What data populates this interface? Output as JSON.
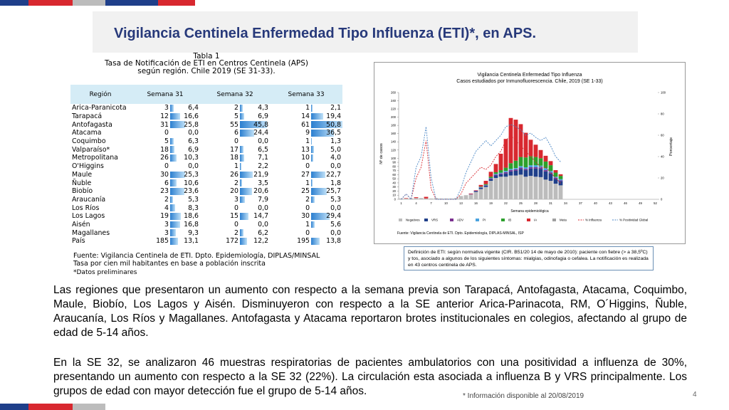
{
  "slide": {
    "title": "Vigilancia Centinela Enfermedad Tipo Influenza (ETI)*, en APS.",
    "page_number": "4",
    "note": "* Información disponible al 20/08/2019",
    "colors": {
      "blue": "#1f3f8a",
      "red": "#d8282f",
      "grey": "#bcbcbc",
      "title": "#27397a"
    }
  },
  "table": {
    "caption_line1": "Tabla 1",
    "caption_line2": "Tasa de Notificación de ETI en Centros Centinela (APS)",
    "caption_line3": "según región. Chile 2019 (SE 31-33).",
    "headers": {
      "region": "Región",
      "w31": "Semana 31",
      "w32": "Semana 32",
      "w33": "Semana 33"
    },
    "rows": [
      {
        "region": "Arica-Paranicota",
        "n31": "3",
        "r31": "6,4",
        "n32": "2",
        "r32": "4,3",
        "n33": "1",
        "r33": "2,1"
      },
      {
        "region": "Tarapacá",
        "n31": "12",
        "r31": "16,6",
        "n32": "5",
        "r32": "6,9",
        "n33": "14",
        "r33": "19,4"
      },
      {
        "region": "Antofagasta",
        "n31": "31",
        "r31": "25,8",
        "n32": "55",
        "r32": "45,8",
        "n33": "61",
        "r33": "50,8"
      },
      {
        "region": "Atacama",
        "n31": "0",
        "r31": "0,0",
        "n32": "6",
        "r32": "24,4",
        "n33": "9",
        "r33": "36,5"
      },
      {
        "region": "Coquimbo",
        "n31": "5",
        "r31": "6,3",
        "n32": "0",
        "r32": "0,0",
        "n33": "1",
        "r33": "1,3"
      },
      {
        "region": "Valparaíso*",
        "n31": "18",
        "r31": "6,9",
        "n32": "17",
        "r32": "6,5",
        "n33": "13",
        "r33": "5,0"
      },
      {
        "region": "Metropolitana",
        "n31": "26",
        "r31": "10,3",
        "n32": "18",
        "r32": "7,1",
        "n33": "10",
        "r33": "4,0"
      },
      {
        "region": "O'Higgins",
        "n31": "0",
        "r31": "0,0",
        "n32": "1",
        "r32": "2,2",
        "n33": "0",
        "r33": "0,0"
      },
      {
        "region": "Maule",
        "n31": "30",
        "r31": "25,3",
        "n32": "26",
        "r32": "21,9",
        "n33": "27",
        "r33": "22,7"
      },
      {
        "region": "Ñuble",
        "n31": "6",
        "r31": "10,6",
        "n32": "2",
        "r32": "3,5",
        "n33": "1",
        "r33": "1,8"
      },
      {
        "region": "Biobío",
        "n31": "23",
        "r31": "23,6",
        "n32": "20",
        "r32": "20,6",
        "n33": "25",
        "r33": "25,7"
      },
      {
        "region": "Araucanía",
        "n31": "2",
        "r31": "5,3",
        "n32": "3",
        "r32": "7,9",
        "n33": "2",
        "r33": "5,3"
      },
      {
        "region": "Los Ríos",
        "n31": "4",
        "r31": "8,3",
        "n32": "0",
        "r32": "0,0",
        "n33": "0",
        "r33": "0,0"
      },
      {
        "region": "Los Lagos",
        "n31": "19",
        "r31": "18,6",
        "n32": "15",
        "r32": "14,7",
        "n33": "30",
        "r33": "29,4"
      },
      {
        "region": "Aisén",
        "n31": "3",
        "r31": "16,8",
        "n32": "0",
        "r32": "0,0",
        "n33": "1",
        "r33": "5,6"
      },
      {
        "region": "Magallanes",
        "n31": "3",
        "r31": "9,3",
        "n32": "2",
        "r32": "6,2",
        "n33": "0",
        "r33": "0,0"
      },
      {
        "region": "País",
        "n31": "185",
        "r31": "13,1",
        "n32": "172",
        "r32": "12,2",
        "n33": "195",
        "r33": "13,8"
      }
    ],
    "footer_line1": "Fuente: Vigilancia Centinela de ETI. Dpto. Epidemiología, DIPLAS/MINSAL",
    "footer_line2": "Tasa por cien mil habitantes en base a población inscrita",
    "footer_line3": "*Datos preliminares"
  },
  "chart": {
    "title_line1": "Vigilancia Centinela Enfermedad Tipo Influenza",
    "title_line2": "Casos estudiados por Inmunofluorescencia. Chile, 2019 (SE 1-33)",
    "ylabel": "Nº de casos",
    "y2label": "Porcentaje",
    "xlabel": "Semana epidemiológica",
    "source": "Fuente: Vigilancia Centinela de ETI. Dpto. Epidemiología, DIPLAS-MINSAL, ISP",
    "legend": [
      "Negativos",
      "VRS",
      "ADV",
      "PI",
      "IB",
      "IA",
      "Meta",
      "% Influenza",
      "% Positividad Global"
    ]
  },
  "chart_data": {
    "type": "bar",
    "x": [
      1,
      2,
      3,
      4,
      5,
      6,
      7,
      8,
      9,
      10,
      11,
      12,
      13,
      14,
      15,
      16,
      17,
      18,
      19,
      20,
      21,
      22,
      23,
      24,
      25,
      26,
      27,
      28,
      29,
      30,
      31,
      32,
      33
    ],
    "x_ticks": [
      "1",
      "4",
      "7",
      "10",
      "13",
      "16",
      "19",
      "22",
      "25",
      "28",
      "31",
      "34",
      "37",
      "40",
      "43",
      "46",
      "49",
      "52"
    ],
    "ylim": [
      0,
      260
    ],
    "y_ticks": [
      "0",
      "10",
      "20",
      "30",
      "40",
      "50",
      "60",
      "70",
      "80",
      "90",
      "100",
      "120",
      "140",
      "160",
      "180",
      "200",
      "220",
      "240",
      "260"
    ],
    "y2_ticks": [
      "0",
      "20",
      "40",
      "60",
      "80",
      "100"
    ],
    "series": [
      {
        "name": "Negativos",
        "values": [
          2,
          2,
          2,
          3,
          3,
          2,
          2,
          3,
          2,
          2,
          2,
          3,
          8,
          10,
          12,
          18,
          25,
          30,
          45,
          52,
          55,
          55,
          58,
          58,
          60,
          55,
          57,
          55,
          54,
          48,
          45,
          38,
          34
        ],
        "color": "#bcbcbc"
      },
      {
        "name": "VRS",
        "values": [
          0,
          0,
          0,
          0,
          0,
          0,
          0,
          0,
          0,
          0,
          0,
          0,
          0,
          0,
          0,
          2,
          3,
          3,
          4,
          6,
          6,
          8,
          10,
          12,
          14,
          16,
          18,
          20,
          20,
          20,
          18,
          12,
          10
        ],
        "color": "#1f3f8a"
      },
      {
        "name": "ADV",
        "values": [
          0,
          0,
          0,
          0,
          0,
          0,
          0,
          0,
          0,
          0,
          0,
          0,
          0,
          0,
          1,
          1,
          1,
          1,
          2,
          2,
          2,
          3,
          3,
          3,
          3,
          3,
          3,
          3,
          3,
          3,
          2,
          2,
          2
        ],
        "color": "#7a2f8f"
      },
      {
        "name": "PI",
        "values": [
          0,
          0,
          0,
          0,
          0,
          0,
          0,
          0,
          0,
          0,
          0,
          0,
          0,
          0,
          0,
          0,
          1,
          1,
          1,
          2,
          2,
          3,
          3,
          3,
          4,
          4,
          5,
          5,
          5,
          5,
          4,
          3,
          3
        ],
        "color": "#4aa3df"
      },
      {
        "name": "IB",
        "values": [
          0,
          0,
          0,
          0,
          0,
          0,
          0,
          0,
          0,
          0,
          0,
          0,
          0,
          0,
          0,
          0,
          1,
          2,
          3,
          4,
          6,
          8,
          14,
          18,
          22,
          24,
          22,
          20,
          18,
          16,
          14,
          10,
          8
        ],
        "color": "#2ca02c"
      },
      {
        "name": "IA",
        "values": [
          0,
          1,
          0,
          2,
          0,
          4,
          0,
          0,
          0,
          0,
          0,
          0,
          0,
          0,
          1,
          1,
          4,
          8,
          12,
          20,
          40,
          70,
          110,
          100,
          80,
          60,
          40,
          30,
          20,
          14,
          10,
          6,
          4
        ],
        "color": "#d8282f"
      },
      {
        "name": "Meta",
        "values": [
          0,
          0,
          0,
          0,
          0,
          0,
          0,
          0,
          0,
          0,
          0,
          0,
          0,
          0,
          0,
          0,
          0,
          0,
          0,
          0,
          0,
          0,
          0,
          0,
          0,
          0,
          0,
          0,
          0,
          0,
          0,
          0,
          0
        ],
        "color": "#a0a0a0"
      },
      {
        "name": "% Influenza",
        "axis": "y2",
        "values": [
          0,
          5,
          0,
          20,
          30,
          55,
          10,
          0,
          0,
          0,
          0,
          0,
          5,
          15,
          20,
          25,
          30,
          28,
          32,
          40,
          45,
          55,
          60,
          55,
          50,
          45,
          40,
          35,
          30,
          30,
          25,
          20,
          15
        ],
        "color": "#d8282f"
      },
      {
        "name": "% Positividad Global",
        "axis": "y2",
        "values": [
          0,
          5,
          0,
          30,
          40,
          68,
          20,
          0,
          0,
          0,
          0,
          0,
          10,
          25,
          35,
          45,
          50,
          55,
          50,
          55,
          60,
          68,
          70,
          68,
          65,
          60,
          62,
          58,
          55,
          58,
          50,
          40,
          35
        ],
        "color": "#4a86c5"
      }
    ]
  },
  "definition": "Definición de ETI: según normativa vigente (CIR. B51/20 14 de mayo de 2010): paciente con fiebre (> a 38,5ºC) y tos, asociado a algunos de los siguientes síntomas: mialgias, odinofagia o cefalea. La notificación es realizada en 43 centros centinela de APS.",
  "paragraphs": {
    "p1": "Las regiones que presentaron un aumento con respecto a la semana previa son Tarapacá, Antofagasta, Atacama, Coquimbo, Maule, Biobío, Los Lagos y Aisén. Disminuyeron con respecto a la SE anterior Arica-Parinacota, RM, O´Higgins, Ñuble, Araucanía, Los Ríos y Magallanes. Antofagasta y Atacama reportaron brotes institucionales en colegios, afectando al grupo de edad de 5-14 años.",
    "p2": "En la SE 32, se analizaron 46 muestras respiratorias de pacientes ambulatorios con una positividad a influenza de 30%, presentando un aumento con respecto a la SE 32 (22%). La circulación esta asociada a influenza B y VRS principalmente. Los grupos de edad con mayor detección fue el grupo de 5-14 años."
  }
}
